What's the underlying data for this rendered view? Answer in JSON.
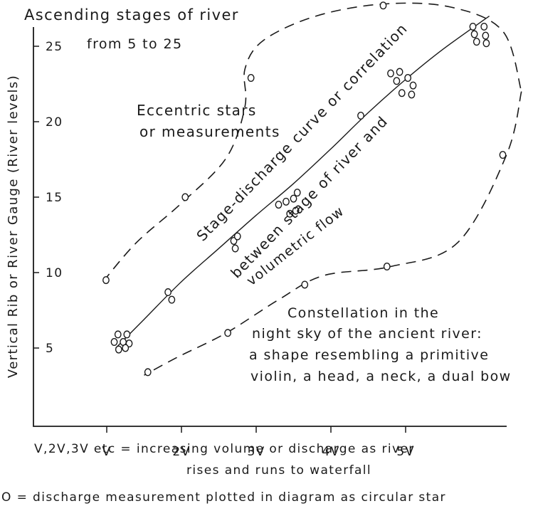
{
  "chart_data": {
    "type": "scatter",
    "title": "Ascending stages of river",
    "subtitle": "from 5 to 25",
    "ylabel": "Vertical Rib or River Gauge (River levels)",
    "xlabel_lines": [
      "V,2V,3V etc = increasing volume or discharge as river",
      "rises and runs to waterfall"
    ],
    "legend": "O = discharge measurement plotted in diagram as circular star",
    "x_ticks": [
      {
        "value": 1,
        "label": "V"
      },
      {
        "value": 2,
        "label": "2V"
      },
      {
        "value": 3,
        "label": "3V"
      },
      {
        "value": 4,
        "label": "4V"
      },
      {
        "value": 5,
        "label": "5V"
      }
    ],
    "y_ticks": [
      {
        "value": 5,
        "label": "5"
      },
      {
        "value": 10,
        "label": "10"
      },
      {
        "value": 15,
        "label": "15"
      },
      {
        "value": 20,
        "label": "20"
      },
      {
        "value": 25,
        "label": "25"
      }
    ],
    "xlim": [
      0,
      6
    ],
    "ylim": [
      1.5,
      27
    ],
    "points": [
      {
        "x": 1.15,
        "y": 5.9
      },
      {
        "x": 1.27,
        "y": 5.9
      },
      {
        "x": 1.1,
        "y": 5.4
      },
      {
        "x": 1.22,
        "y": 5.4
      },
      {
        "x": 1.3,
        "y": 5.3
      },
      {
        "x": 1.16,
        "y": 4.9
      },
      {
        "x": 1.25,
        "y": 5.0
      },
      {
        "x": 1.82,
        "y": 8.7
      },
      {
        "x": 1.87,
        "y": 8.2
      },
      {
        "x": 2.7,
        "y": 12.1
      },
      {
        "x": 2.75,
        "y": 12.4
      },
      {
        "x": 2.72,
        "y": 11.6
      },
      {
        "x": 3.3,
        "y": 14.5
      },
      {
        "x": 3.4,
        "y": 14.7
      },
      {
        "x": 3.5,
        "y": 14.9
      },
      {
        "x": 3.55,
        "y": 15.3
      },
      {
        "x": 3.45,
        "y": 13.9
      },
      {
        "x": 3.53,
        "y": 14.1
      },
      {
        "x": 4.4,
        "y": 20.4
      },
      {
        "x": 4.8,
        "y": 23.2
      },
      {
        "x": 4.92,
        "y": 23.3
      },
      {
        "x": 4.88,
        "y": 22.7
      },
      {
        "x": 5.03,
        "y": 22.9
      },
      {
        "x": 5.1,
        "y": 22.4
      },
      {
        "x": 4.95,
        "y": 21.9
      },
      {
        "x": 5.08,
        "y": 21.8
      },
      {
        "x": 5.9,
        "y": 26.3
      },
      {
        "x": 6.05,
        "y": 26.3
      },
      {
        "x": 5.92,
        "y": 25.8
      },
      {
        "x": 6.07,
        "y": 25.7
      },
      {
        "x": 5.95,
        "y": 25.3
      },
      {
        "x": 6.08,
        "y": 25.2
      },
      {
        "x": 0.99,
        "y": 9.5
      },
      {
        "x": 2.05,
        "y": 15.0
      },
      {
        "x": 2.93,
        "y": 22.9
      },
      {
        "x": 4.7,
        "y": 27.7
      },
      {
        "x": 6.3,
        "y": 17.8
      },
      {
        "x": 4.75,
        "y": 10.4
      },
      {
        "x": 3.65,
        "y": 9.2
      },
      {
        "x": 2.62,
        "y": 6.0
      },
      {
        "x": 1.55,
        "y": 3.4
      }
    ],
    "curve": [
      [
        1.12,
        5.0
      ],
      [
        1.5,
        6.9
      ],
      [
        2.0,
        9.4
      ],
      [
        2.5,
        11.6
      ],
      [
        3.0,
        13.8
      ],
      [
        3.5,
        15.9
      ],
      [
        4.0,
        18.2
      ],
      [
        4.5,
        20.6
      ],
      [
        5.0,
        22.8
      ],
      [
        5.5,
        24.8
      ],
      [
        6.12,
        27.0
      ]
    ],
    "envelope_upper": [
      [
        0.95,
        9.4
      ],
      [
        1.4,
        12.0
      ],
      [
        2.0,
        14.6
      ],
      [
        2.6,
        17.6
      ],
      [
        2.85,
        21.0
      ],
      [
        2.85,
        23.5
      ],
      [
        3.1,
        25.4
      ],
      [
        3.8,
        27.0
      ],
      [
        4.7,
        27.8
      ],
      [
        5.6,
        27.6
      ],
      [
        6.3,
        26.0
      ],
      [
        6.55,
        22.0
      ]
    ],
    "envelope_lower": [
      [
        6.55,
        22.0
      ],
      [
        6.35,
        17.8
      ],
      [
        5.7,
        12.0
      ],
      [
        4.8,
        10.4
      ],
      [
        3.9,
        9.8
      ],
      [
        3.3,
        8.2
      ],
      [
        2.6,
        6.0
      ],
      [
        1.95,
        4.4
      ],
      [
        1.5,
        3.2
      ]
    ],
    "annotations": [
      {
        "text": "Eccentric stars"
      },
      {
        "text": "or measurements"
      },
      {
        "text": "Stage-discharge curve or correlation"
      },
      {
        "text": "between stage of river and"
      },
      {
        "text": "volumetric flow"
      },
      {
        "text": "Constellation in the"
      },
      {
        "text": "night sky of the ancient river:"
      },
      {
        "text": "a shape resembling a primitive"
      },
      {
        "text": "violin, a head, a neck, a dual bow"
      }
    ]
  }
}
